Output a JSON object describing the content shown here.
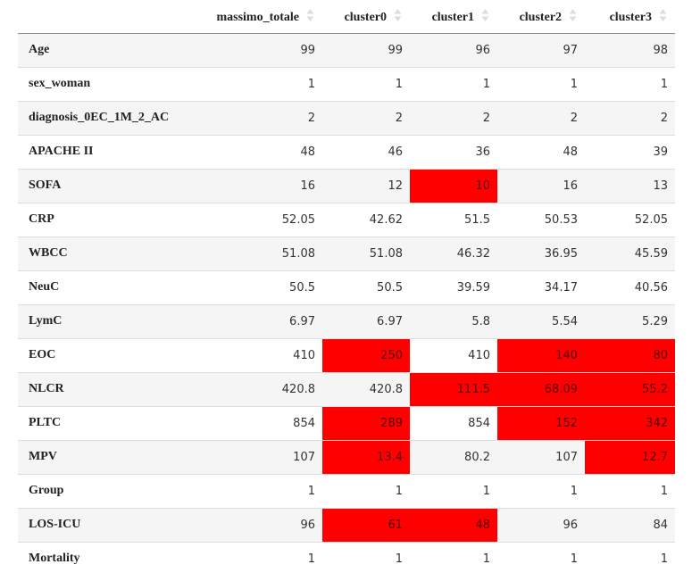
{
  "table": {
    "row_header_label": "",
    "columns": [
      "massimo_totale",
      "cluster0",
      "cluster1",
      "cluster2",
      "cluster3"
    ],
    "highlight_color": "#ff0000",
    "rows": [
      {
        "label": "Age",
        "values": [
          "99",
          "99",
          "96",
          "97",
          "98"
        ],
        "highlight": [
          false,
          false,
          false,
          false,
          false
        ]
      },
      {
        "label": "sex_woman",
        "values": [
          "1",
          "1",
          "1",
          "1",
          "1"
        ],
        "highlight": [
          false,
          false,
          false,
          false,
          false
        ]
      },
      {
        "label": "diagnosis_0EC_1M_2_AC",
        "values": [
          "2",
          "2",
          "2",
          "2",
          "2"
        ],
        "highlight": [
          false,
          false,
          false,
          false,
          false
        ]
      },
      {
        "label": "APACHE II",
        "values": [
          "48",
          "46",
          "36",
          "48",
          "39"
        ],
        "highlight": [
          false,
          false,
          false,
          false,
          false
        ]
      },
      {
        "label": "SOFA",
        "values": [
          "16",
          "12",
          "10",
          "16",
          "13"
        ],
        "highlight": [
          false,
          false,
          true,
          false,
          false
        ]
      },
      {
        "label": "CRP",
        "values": [
          "52.05",
          "42.62",
          "51.5",
          "50.53",
          "52.05"
        ],
        "highlight": [
          false,
          false,
          false,
          false,
          false
        ]
      },
      {
        "label": "WBCC",
        "values": [
          "51.08",
          "51.08",
          "46.32",
          "36.95",
          "45.59"
        ],
        "highlight": [
          false,
          false,
          false,
          false,
          false
        ]
      },
      {
        "label": "NeuC",
        "values": [
          "50.5",
          "50.5",
          "39.59",
          "34.17",
          "40.56"
        ],
        "highlight": [
          false,
          false,
          false,
          false,
          false
        ]
      },
      {
        "label": "LymC",
        "values": [
          "6.97",
          "6.97",
          "5.8",
          "5.54",
          "5.29"
        ],
        "highlight": [
          false,
          false,
          false,
          false,
          false
        ]
      },
      {
        "label": "EOC",
        "values": [
          "410",
          "250",
          "410",
          "140",
          "80"
        ],
        "highlight": [
          false,
          true,
          false,
          true,
          true
        ]
      },
      {
        "label": "NLCR",
        "values": [
          "420.8",
          "420.8",
          "111.5",
          "68.09",
          "55.2"
        ],
        "highlight": [
          false,
          false,
          true,
          true,
          true
        ]
      },
      {
        "label": "PLTC",
        "values": [
          "854",
          "289",
          "854",
          "152",
          "342"
        ],
        "highlight": [
          false,
          true,
          false,
          true,
          true
        ]
      },
      {
        "label": "MPV",
        "values": [
          "107",
          "13.4",
          "80.2",
          "107",
          "12.7"
        ],
        "highlight": [
          false,
          true,
          false,
          false,
          true
        ]
      },
      {
        "label": "Group",
        "values": [
          "1",
          "1",
          "1",
          "1",
          "1"
        ],
        "highlight": [
          false,
          false,
          false,
          false,
          false
        ]
      },
      {
        "label": "LOS-ICU",
        "values": [
          "96",
          "61",
          "48",
          "96",
          "84"
        ],
        "highlight": [
          false,
          true,
          true,
          false,
          false
        ]
      },
      {
        "label": "Mortality",
        "values": [
          "1",
          "1",
          "1",
          "1",
          "1"
        ],
        "highlight": [
          false,
          false,
          false,
          false,
          false
        ]
      }
    ]
  },
  "icons": {
    "sort": "sort-both-arrows-icon"
  }
}
